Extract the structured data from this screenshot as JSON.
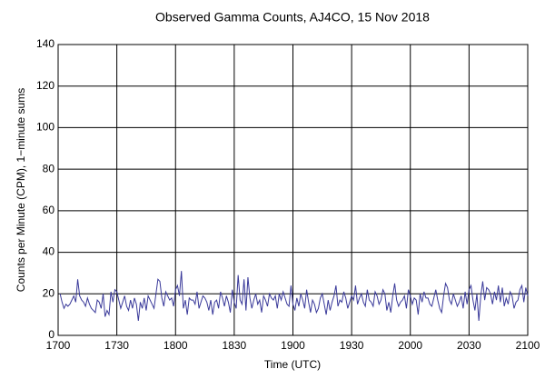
{
  "chart_data": {
    "type": "line",
    "title": "Observed Gamma Counts, AJ4CO, 15 Nov 2018",
    "x_label": "Time (UTC)",
    "y_label": "Counts per Minute (CPM), 1−minute sums",
    "color": "#3a3a9a",
    "grid": true,
    "xlim": [
      1020,
      1260
    ],
    "xticks": [
      {
        "value": 1020,
        "label": "1700"
      },
      {
        "value": 1050,
        "label": "1730"
      },
      {
        "value": 1080,
        "label": "1800"
      },
      {
        "value": 1110,
        "label": "1830"
      },
      {
        "value": 1140,
        "label": "1900"
      },
      {
        "value": 1170,
        "label": "1930"
      },
      {
        "value": 1200,
        "label": "2000"
      },
      {
        "value": 1230,
        "label": "2030"
      },
      {
        "value": 1260,
        "label": "2100"
      }
    ],
    "ylim": [
      0,
      140
    ],
    "yticks": [
      0,
      20,
      40,
      60,
      80,
      100,
      120,
      140
    ],
    "x": [
      1021,
      1022,
      1023,
      1024,
      1025,
      1026,
      1027,
      1028,
      1029,
      1030,
      1031,
      1032,
      1033,
      1034,
      1035,
      1036,
      1037,
      1038,
      1039,
      1040,
      1041,
      1042,
      1043,
      1044,
      1045,
      1046,
      1047,
      1048,
      1049,
      1050,
      1051,
      1052,
      1053,
      1054,
      1055,
      1056,
      1057,
      1058,
      1059,
      1060,
      1061,
      1062,
      1063,
      1064,
      1065,
      1066,
      1067,
      1068,
      1069,
      1070,
      1071,
      1072,
      1073,
      1074,
      1075,
      1076,
      1077,
      1078,
      1079,
      1080,
      1081,
      1082,
      1083,
      1084,
      1085,
      1086,
      1087,
      1088,
      1089,
      1090,
      1091,
      1092,
      1093,
      1094,
      1095,
      1096,
      1097,
      1098,
      1099,
      1100,
      1101,
      1102,
      1103,
      1104,
      1105,
      1106,
      1107,
      1108,
      1109,
      1110,
      1111,
      1112,
      1113,
      1114,
      1115,
      1116,
      1117,
      1118,
      1119,
      1120,
      1121,
      1122,
      1123,
      1124,
      1125,
      1126,
      1127,
      1128,
      1129,
      1130,
      1131,
      1132,
      1133,
      1134,
      1135,
      1136,
      1137,
      1138,
      1139,
      1140,
      1141,
      1142,
      1143,
      1144,
      1145,
      1146,
      1147,
      1148,
      1149,
      1150,
      1151,
      1152,
      1153,
      1154,
      1155,
      1156,
      1157,
      1158,
      1159,
      1160,
      1161,
      1162,
      1163,
      1164,
      1165,
      1166,
      1167,
      1168,
      1169,
      1170,
      1171,
      1172,
      1173,
      1174,
      1175,
      1176,
      1177,
      1178,
      1179,
      1180,
      1181,
      1182,
      1183,
      1184,
      1185,
      1186,
      1187,
      1188,
      1189,
      1190,
      1191,
      1192,
      1193,
      1194,
      1195,
      1196,
      1197,
      1198,
      1199,
      1200,
      1201,
      1202,
      1203,
      1204,
      1205,
      1206,
      1207,
      1208,
      1209,
      1210,
      1211,
      1212,
      1213,
      1214,
      1215,
      1216,
      1217,
      1218,
      1219,
      1220,
      1221,
      1222,
      1223,
      1224,
      1225,
      1226,
      1227,
      1228,
      1229,
      1230,
      1231,
      1232,
      1233,
      1234,
      1235,
      1236,
      1237,
      1238,
      1239,
      1240,
      1241,
      1242,
      1243,
      1244,
      1245,
      1246,
      1247,
      1248,
      1249,
      1250,
      1251,
      1252,
      1253,
      1254,
      1255,
      1256,
      1257,
      1258,
      1259,
      1260
    ],
    "values": [
      20,
      16,
      13,
      15,
      14,
      15,
      17,
      19,
      16,
      27,
      19,
      17,
      16,
      14,
      18,
      15,
      13,
      12,
      11,
      17,
      16,
      13,
      20,
      9,
      12,
      10,
      21,
      16,
      22,
      21,
      17,
      13,
      16,
      19,
      14,
      12,
      17,
      13,
      18,
      15,
      7,
      16,
      13,
      18,
      12,
      19,
      17,
      15,
      13,
      20,
      27,
      26,
      18,
      14,
      21,
      19,
      17,
      18,
      14,
      22,
      24,
      19,
      31,
      13,
      17,
      10,
      18,
      17,
      17,
      15,
      21,
      13,
      16,
      19,
      18,
      16,
      12,
      17,
      10,
      16,
      17,
      13,
      21,
      18,
      14,
      19,
      16,
      11,
      22,
      16,
      13,
      29,
      17,
      15,
      27,
      12,
      28,
      18,
      13,
      17,
      20,
      15,
      17,
      11,
      19,
      17,
      14,
      20,
      18,
      17,
      19,
      13,
      20,
      17,
      21,
      18,
      15,
      14,
      24,
      15,
      12,
      18,
      14,
      20,
      17,
      13,
      22,
      16,
      11,
      17,
      15,
      11,
      13,
      18,
      20,
      15,
      10,
      17,
      12,
      16,
      19,
      24,
      14,
      17,
      16,
      21,
      18,
      13,
      16,
      19,
      17,
      24,
      15,
      18,
      20,
      16,
      14,
      22,
      17,
      16,
      14,
      21,
      19,
      15,
      17,
      22,
      20,
      12,
      16,
      11,
      19,
      25,
      17,
      14,
      16,
      17,
      19,
      13,
      22,
      19,
      15,
      18,
      17,
      10,
      20,
      16,
      21,
      18,
      18,
      15,
      14,
      18,
      22,
      17,
      13,
      11,
      19,
      25,
      23,
      17,
      15,
      20,
      17,
      14,
      16,
      19,
      13,
      21,
      15,
      22,
      24,
      17,
      12,
      20,
      7,
      19,
      26,
      17,
      23,
      22,
      20,
      15,
      21,
      17,
      24,
      16,
      23,
      14,
      18,
      15,
      21,
      19,
      13,
      16,
      17,
      22,
      24,
      16,
      23,
      19
    ]
  }
}
